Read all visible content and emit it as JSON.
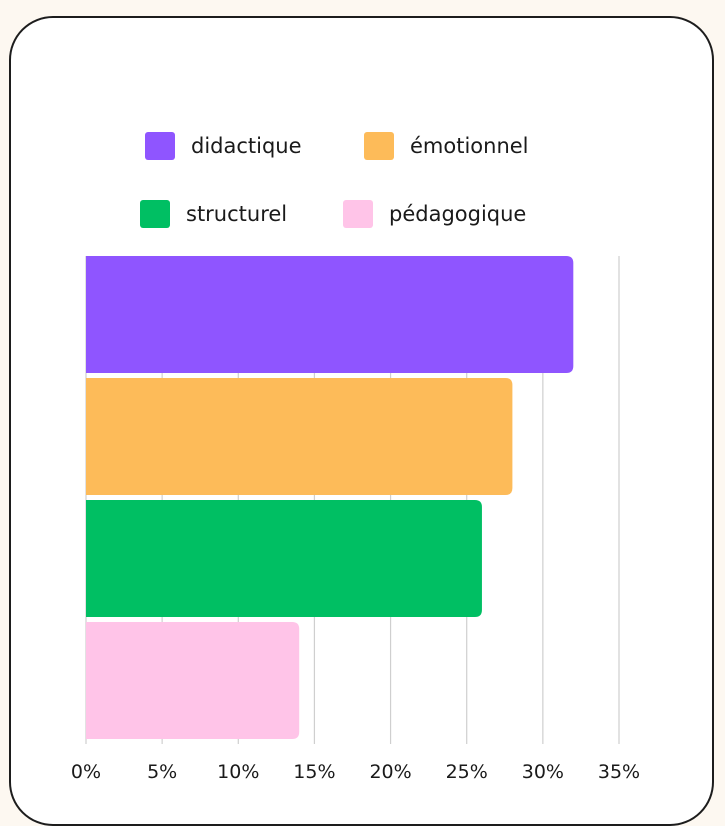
{
  "chart_data": {
    "type": "bar",
    "orientation": "horizontal",
    "categories": [
      "didactique",
      "émotionnel",
      "structurel",
      "pédagogique"
    ],
    "values": [
      32,
      28,
      26,
      14
    ],
    "colors": [
      "#8f55ff",
      "#fdbb59",
      "#00bf63",
      "#ffc4e8"
    ],
    "xlim": [
      0,
      35
    ],
    "xticks": [
      "0%",
      "5%",
      "10%",
      "15%",
      "20%",
      "25%",
      "30%",
      "35%"
    ],
    "unit": "%",
    "grid": true,
    "legend_position": "top"
  },
  "legend": [
    {
      "label": "didactique",
      "color": "#8f55ff"
    },
    {
      "label": "émotionnel",
      "color": "#fdbb59"
    },
    {
      "label": "structurel",
      "color": "#00bf63"
    },
    {
      "label": "pédagogique",
      "color": "#ffc4e8"
    }
  ]
}
